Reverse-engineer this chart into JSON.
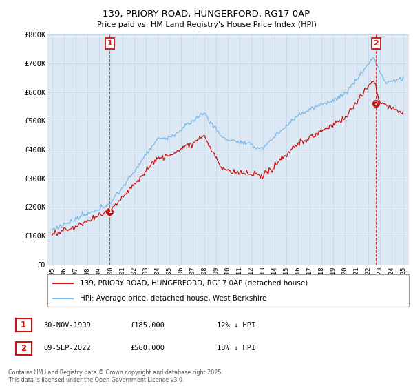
{
  "title": "139, PRIORY ROAD, HUNGERFORD, RG17 0AP",
  "subtitle": "Price paid vs. HM Land Registry's House Price Index (HPI)",
  "ylim": [
    0,
    800000
  ],
  "yticks": [
    0,
    100000,
    200000,
    300000,
    400000,
    500000,
    600000,
    700000,
    800000
  ],
  "ytick_labels": [
    "£0",
    "£100K",
    "£200K",
    "£300K",
    "£400K",
    "£500K",
    "£600K",
    "£700K",
    "£800K"
  ],
  "hpi_color": "#7ab8e8",
  "price_color": "#cc1111",
  "chart_bg": "#dce9f5",
  "marker1_year": 1999.92,
  "marker1_price": 185000,
  "marker1_label": "1",
  "marker2_year": 2022.69,
  "marker2_price": 560000,
  "marker2_label": "2",
  "legend_line1": "139, PRIORY ROAD, HUNGERFORD, RG17 0AP (detached house)",
  "legend_line2": "HPI: Average price, detached house, West Berkshire",
  "annotation1_date": "30-NOV-1999",
  "annotation1_price": "£185,000",
  "annotation1_hpi": "12% ↓ HPI",
  "annotation2_date": "09-SEP-2022",
  "annotation2_price": "£560,000",
  "annotation2_hpi": "18% ↓ HPI",
  "footer": "Contains HM Land Registry data © Crown copyright and database right 2025.\nThis data is licensed under the Open Government Licence v3.0.",
  "background_color": "#ffffff",
  "grid_color": "#c8d8ea"
}
